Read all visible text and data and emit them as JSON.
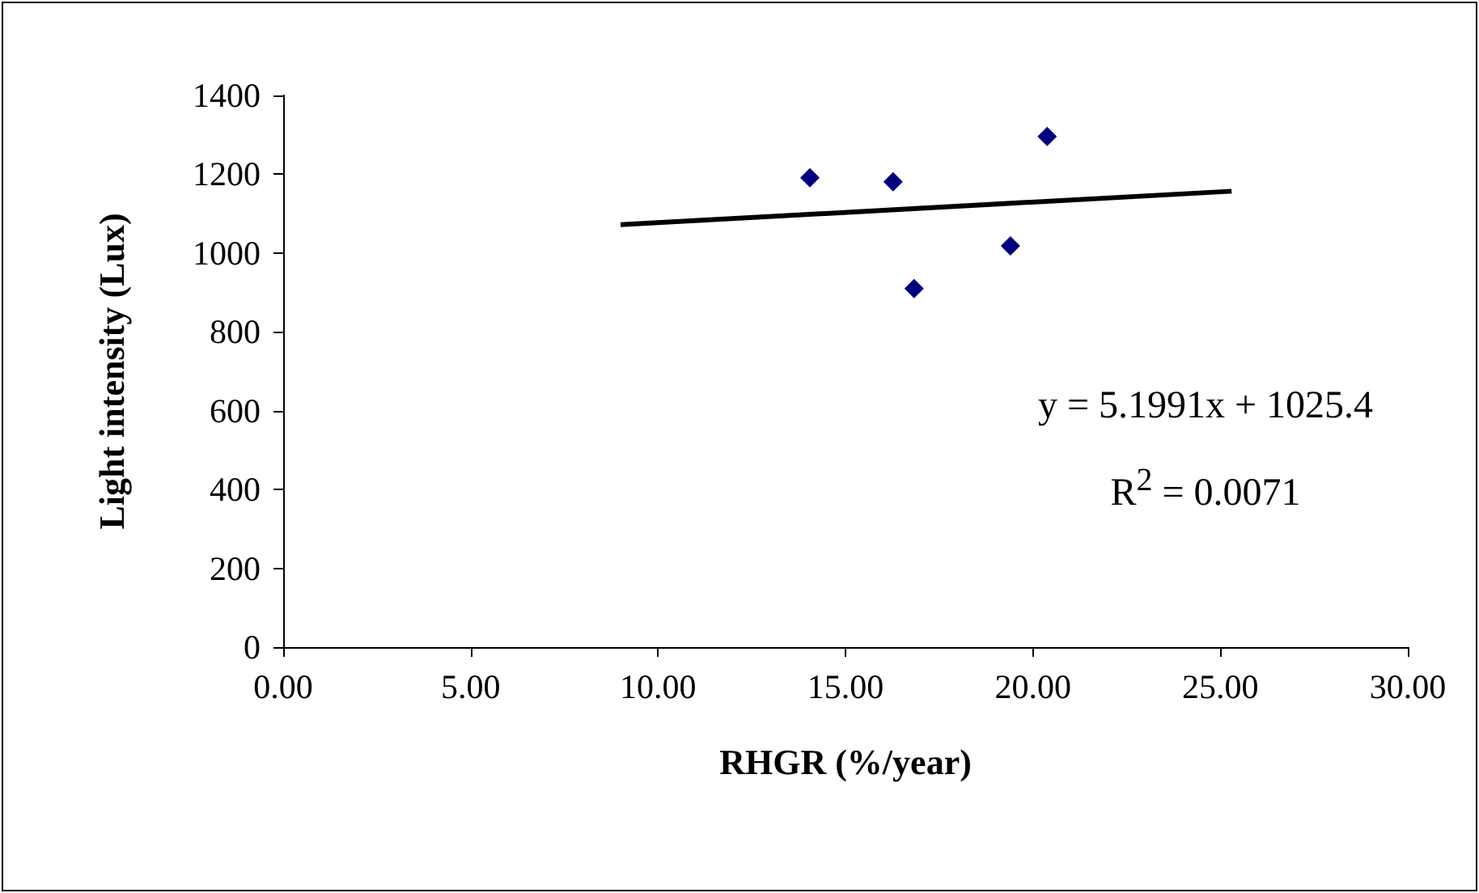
{
  "chart_data": {
    "type": "scatter",
    "xlabel": "RHGR (%/year)",
    "ylabel": "Light intensity (Lux)",
    "series": [
      {
        "type": "scatter",
        "color": "#000080",
        "marker": "diamond",
        "x": [
          14.05,
          16.27,
          16.83,
          19.4,
          20.38
        ],
        "values": [
          1191,
          1181,
          910,
          1018,
          1296
        ]
      },
      {
        "type": "line",
        "color": "#000000",
        "marker": "none",
        "x": [
          9.0,
          25.3
        ],
        "values": [
          1072,
          1157
        ]
      }
    ],
    "xlim": [
      0,
      30
    ],
    "xticks": [
      {
        "value": 0,
        "label": "0.00"
      },
      {
        "value": 5,
        "label": "5.00"
      },
      {
        "value": 10,
        "label": "10.00"
      },
      {
        "value": 15,
        "label": "15.00"
      },
      {
        "value": 20,
        "label": "20.00"
      },
      {
        "value": 25,
        "label": "25.00"
      },
      {
        "value": 30,
        "label": "30.00"
      }
    ],
    "ylim": [
      0,
      1400
    ],
    "yticks": [
      0,
      200,
      400,
      600,
      800,
      1000,
      1200,
      1400
    ],
    "grid": false,
    "annotations": [
      "y = 5.1991x + 1025.4",
      "R$^{2}$ = 0.0071"
    ]
  }
}
